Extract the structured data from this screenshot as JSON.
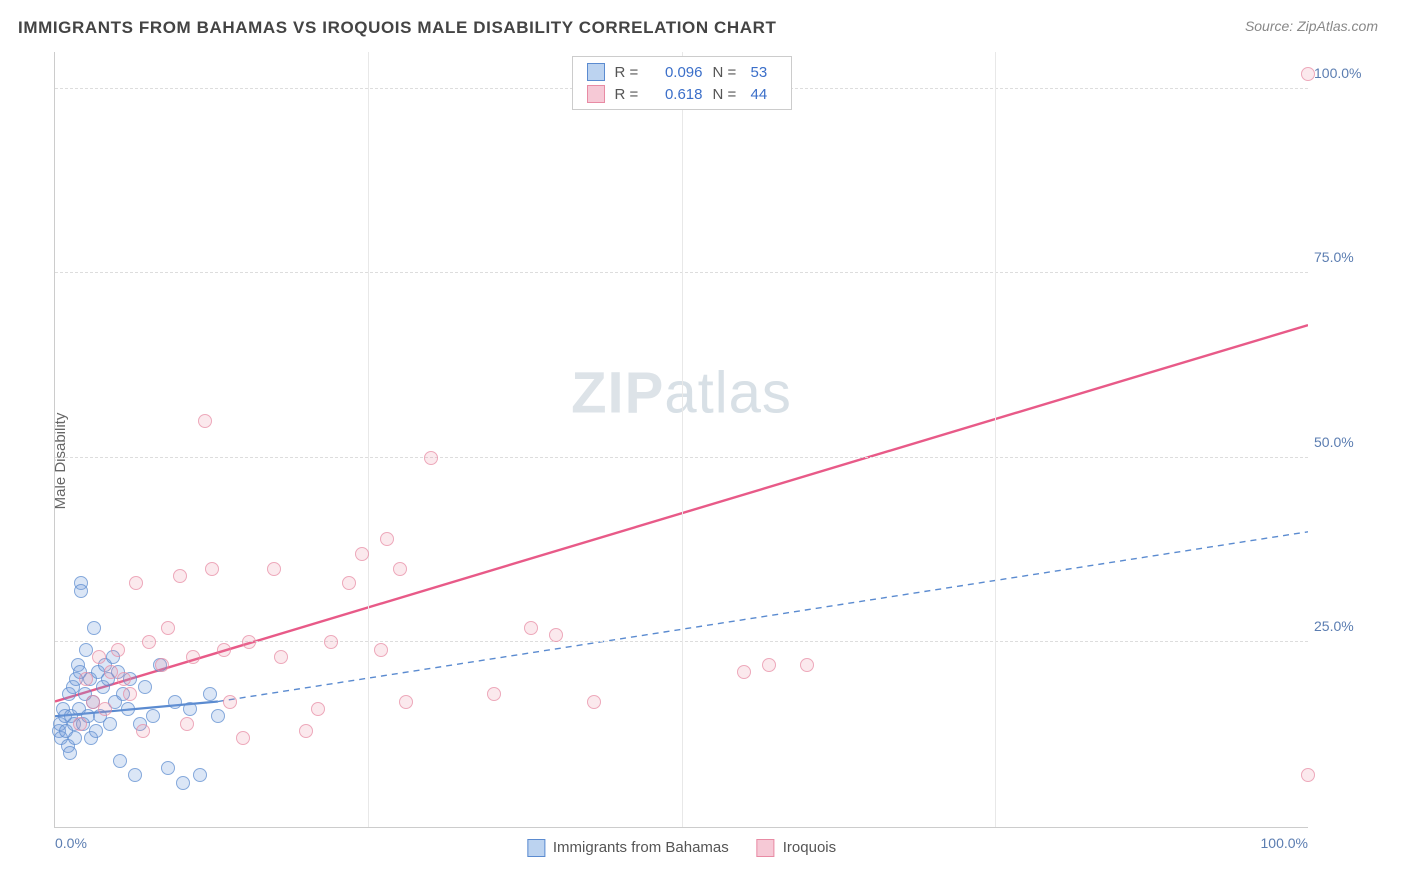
{
  "header": {
    "title": "IMMIGRANTS FROM BAHAMAS VS IROQUOIS MALE DISABILITY CORRELATION CHART",
    "source_prefix": "Source: ",
    "source_name": "ZipAtlas.com"
  },
  "watermark": {
    "bold": "ZIP",
    "thin": "atlas"
  },
  "chart": {
    "type": "scatter",
    "ylabel": "Male Disability",
    "xlim": [
      0,
      100
    ],
    "ylim": [
      0,
      105
    ],
    "xticks": [
      {
        "v": 0,
        "label": "0.0%",
        "edge": "first"
      },
      {
        "v": 25,
        "label": "",
        "edge": ""
      },
      {
        "v": 50,
        "label": "",
        "edge": ""
      },
      {
        "v": 75,
        "label": "",
        "edge": ""
      },
      {
        "v": 100,
        "label": "100.0%",
        "edge": "last"
      }
    ],
    "yticks": [
      {
        "v": 25,
        "label": "25.0%"
      },
      {
        "v": 50,
        "label": "50.0%"
      },
      {
        "v": 75,
        "label": "75.0%"
      },
      {
        "v": 100,
        "label": "100.0%"
      }
    ],
    "background_color": "#ffffff",
    "grid_color": "#dddddd",
    "legend_top": {
      "rows": [
        {
          "swatch_fill": "#bcd3f0",
          "swatch_border": "#5b8bd0",
          "r_label": "R =",
          "r": "0.096",
          "n_label": "N =",
          "n": "53"
        },
        {
          "swatch_fill": "#f6c9d6",
          "swatch_border": "#e88ba4",
          "r_label": "R =",
          "r": "0.618",
          "n_label": "N =",
          "n": "44"
        }
      ]
    },
    "legend_bottom": [
      {
        "swatch_fill": "#bcd3f0",
        "swatch_border": "#5b8bd0",
        "label": "Immigrants from Bahamas"
      },
      {
        "swatch_fill": "#f6c9d6",
        "swatch_border": "#e88ba4",
        "label": "Iroquois"
      }
    ],
    "series": [
      {
        "name": "Immigrants from Bahamas",
        "class": "blue",
        "color": "#5b8bd0",
        "fill": "rgba(120,160,220,0.35)",
        "trend": {
          "x1": 0,
          "y1": 15,
          "x2": 13,
          "y2": 17,
          "dash": false,
          "width": 2.2
        },
        "trend_ext": {
          "x1": 13,
          "y1": 17,
          "x2": 100,
          "y2": 40,
          "dash": true,
          "width": 1.4
        },
        "points": [
          [
            0.3,
            13
          ],
          [
            0.4,
            14
          ],
          [
            0.5,
            12
          ],
          [
            0.6,
            16
          ],
          [
            0.8,
            15
          ],
          [
            0.9,
            13
          ],
          [
            1.0,
            11
          ],
          [
            1.1,
            18
          ],
          [
            1.2,
            10
          ],
          [
            1.3,
            15
          ],
          [
            1.4,
            19
          ],
          [
            1.5,
            14
          ],
          [
            1.6,
            12
          ],
          [
            1.7,
            20
          ],
          [
            1.8,
            22
          ],
          [
            1.9,
            16
          ],
          [
            2.0,
            21
          ],
          [
            2.1,
            33
          ],
          [
            2.1,
            32
          ],
          [
            2.2,
            14
          ],
          [
            2.4,
            18
          ],
          [
            2.5,
            24
          ],
          [
            2.6,
            15
          ],
          [
            2.8,
            20
          ],
          [
            2.9,
            12
          ],
          [
            3.0,
            17
          ],
          [
            3.1,
            27
          ],
          [
            3.3,
            13
          ],
          [
            3.4,
            21
          ],
          [
            3.6,
            15
          ],
          [
            3.8,
            19
          ],
          [
            4.0,
            22
          ],
          [
            4.2,
            20
          ],
          [
            4.4,
            14
          ],
          [
            4.6,
            23
          ],
          [
            4.8,
            17
          ],
          [
            5.0,
            21
          ],
          [
            5.2,
            9
          ],
          [
            5.4,
            18
          ],
          [
            5.8,
            16
          ],
          [
            6.0,
            20
          ],
          [
            6.4,
            7
          ],
          [
            6.8,
            14
          ],
          [
            7.2,
            19
          ],
          [
            7.8,
            15
          ],
          [
            8.4,
            22
          ],
          [
            9.0,
            8
          ],
          [
            9.6,
            17
          ],
          [
            10.2,
            6
          ],
          [
            10.8,
            16
          ],
          [
            11.6,
            7
          ],
          [
            12.4,
            18
          ],
          [
            13.0,
            15
          ]
        ]
      },
      {
        "name": "Iroquois",
        "class": "pink",
        "color": "#e85a88",
        "fill": "rgba(235,140,165,0.25)",
        "trend": {
          "x1": 0,
          "y1": 17,
          "x2": 100,
          "y2": 68,
          "dash": false,
          "width": 2.4
        },
        "points": [
          [
            2,
            14
          ],
          [
            2.5,
            20
          ],
          [
            3,
            17
          ],
          [
            3.5,
            23
          ],
          [
            4,
            16
          ],
          [
            4.5,
            21
          ],
          [
            5,
            24
          ],
          [
            5.5,
            20
          ],
          [
            6,
            18
          ],
          [
            6.5,
            33
          ],
          [
            7,
            13
          ],
          [
            7.5,
            25
          ],
          [
            8.5,
            22
          ],
          [
            9,
            27
          ],
          [
            10,
            34
          ],
          [
            10.5,
            14
          ],
          [
            11,
            23
          ],
          [
            12,
            55
          ],
          [
            12.5,
            35
          ],
          [
            13.5,
            24
          ],
          [
            14,
            17
          ],
          [
            15,
            12
          ],
          [
            15.5,
            25
          ],
          [
            17.5,
            35
          ],
          [
            18,
            23
          ],
          [
            20,
            13
          ],
          [
            21,
            16
          ],
          [
            22,
            25
          ],
          [
            23.5,
            33
          ],
          [
            24.5,
            37
          ],
          [
            26,
            24
          ],
          [
            26.5,
            39
          ],
          [
            27.5,
            35
          ],
          [
            28,
            17
          ],
          [
            30,
            50
          ],
          [
            35,
            18
          ],
          [
            38,
            27
          ],
          [
            40,
            26
          ],
          [
            43,
            17
          ],
          [
            55,
            21
          ],
          [
            57,
            22
          ],
          [
            60,
            22
          ],
          [
            100,
            102
          ],
          [
            100,
            7
          ]
        ]
      }
    ]
  }
}
